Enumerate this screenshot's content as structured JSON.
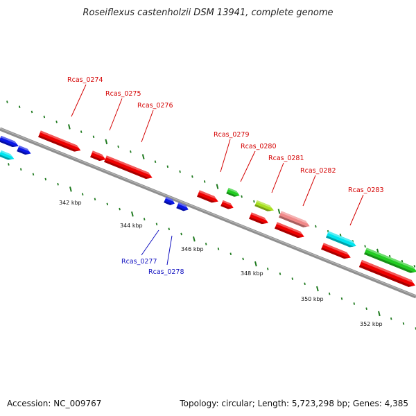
{
  "title": "Roseiflexus castenholzii DSM 13941, complete genome",
  "footer": {
    "accession": "Accession: NC_009767",
    "summary": "Topology: circular; Length: 5,723,298 bp; Genes: 4,385"
  },
  "scale_labels": [
    "342 kbp",
    "344 kbp",
    "346 kbp",
    "348 kbp",
    "350 kbp",
    "352 kbp"
  ],
  "colors": {
    "backbone": "#888888",
    "ticks": "#1f7a1f",
    "label_red": "#d40000",
    "label_blue": "#1010c0"
  },
  "gene_labels": {
    "outer": [
      "Rcas_0274",
      "Rcas_0275",
      "Rcas_0276",
      "Rcas_0279",
      "Rcas_0280",
      "Rcas_0281",
      "Rcas_0282",
      "Rcas_0283"
    ],
    "inner": [
      "Rcas_0277",
      "Rcas_0278"
    ]
  },
  "features": [
    {
      "name": "blue-left",
      "color": "#0a17e6"
    },
    {
      "name": "blue-left-2",
      "color": "#0a17e6"
    },
    {
      "name": "cyan-left",
      "color": "#00e5f0"
    },
    {
      "name": "Rcas_0274",
      "color": "#ee0000"
    },
    {
      "name": "Rcas_0275",
      "color": "#ee0000"
    },
    {
      "name": "Rcas_0276",
      "color": "#ee0000"
    },
    {
      "name": "Rcas_0277",
      "color": "#0a17e6"
    },
    {
      "name": "Rcas_0278",
      "color": "#0a17e6"
    },
    {
      "name": "Rcas_0279",
      "color": "#ee0000"
    },
    {
      "name": "Rcas_0279-b",
      "color": "#22cc22"
    },
    {
      "name": "Rcas_0280",
      "color": "#ee0000"
    },
    {
      "name": "Rcas_0281",
      "color": "#a8e020"
    },
    {
      "name": "Rcas_0281-b",
      "color": "#ee0000"
    },
    {
      "name": "Rcas_0282",
      "color": "#f08888"
    },
    {
      "name": "Rcas_0282-b",
      "color": "#ee0000"
    },
    {
      "name": "Rcas_0283",
      "color": "#00e5f0"
    },
    {
      "name": "Rcas_0283-b",
      "color": "#ee0000"
    },
    {
      "name": "green-right",
      "color": "#22cc22"
    },
    {
      "name": "red-right",
      "color": "#ee0000"
    }
  ]
}
